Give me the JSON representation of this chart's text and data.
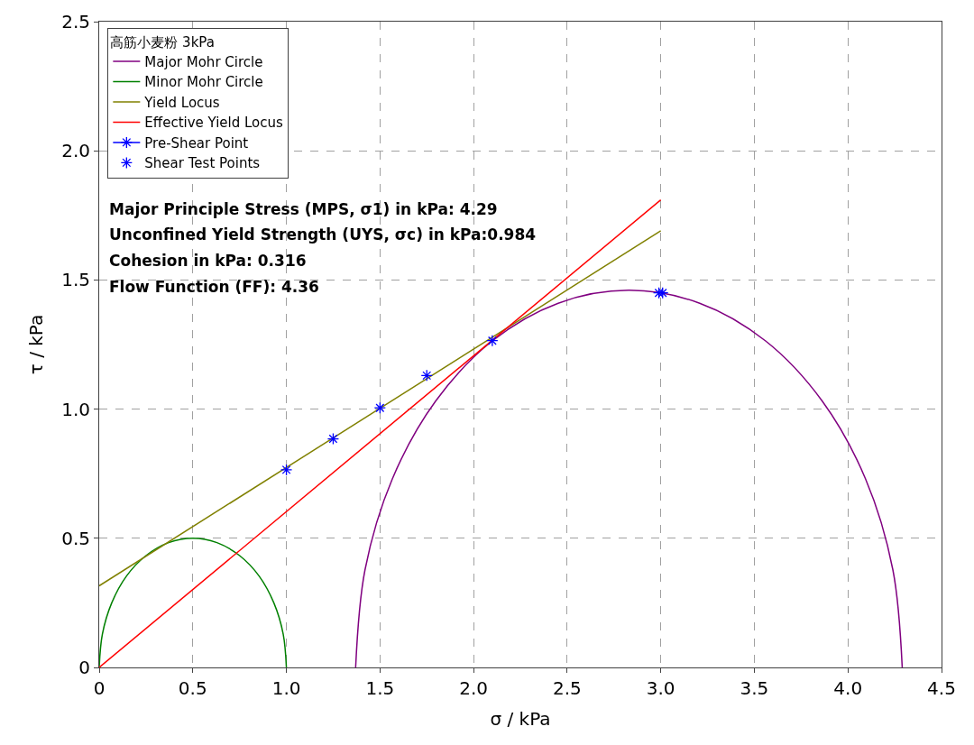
{
  "chart_data": {
    "type": "line",
    "xlabel": "σ / kPa",
    "ylabel": "τ / kPa",
    "legend_title": "高筋小麦粉 3kPa",
    "xlim": [
      0,
      4.5
    ],
    "xticks": [
      0,
      0.5,
      {
        "value": 1,
        "label": "1.0"
      },
      1.5,
      {
        "value": 2,
        "label": "2.0"
      },
      2.5,
      {
        "value": 3,
        "label": "3.0"
      },
      3.5,
      {
        "value": 4,
        "label": "4.0"
      },
      4.5
    ],
    "ylim": [
      0,
      2.5
    ],
    "yticks": [
      0,
      0.5,
      {
        "value": 1,
        "label": "1.0"
      },
      1.5,
      {
        "value": 2,
        "label": "2.0"
      },
      2.5
    ],
    "grid": true,
    "legend": "top left",
    "marker": "none",
    "annotations": [
      "Major Principle Stress (MPS, σ1) in kPa: 4.29",
      "Unconfined Yield Strength (UYS, σc) in kPa:0.984",
      "Cohesion in kPa: 0.316",
      "Flow Function (FF): 4.36"
    ],
    "series": [
      {
        "name": "Major Mohr Circle",
        "color": "#800080",
        "x": [
          1.37,
          1.42,
          1.566,
          1.798,
          2.1,
          2.452,
          2.83,
          3.208,
          3.56,
          3.862,
          4.094,
          4.24,
          4.29
        ],
        "values": [
          0,
          0.378,
          0.73,
          1.032,
          1.264,
          1.41,
          1.46,
          1.41,
          1.264,
          1.032,
          0.73,
          0.378,
          0
        ]
      },
      {
        "name": "Minor Mohr Circle",
        "color": "#008000",
        "x": [
          0,
          0.017,
          0.067,
          0.146,
          0.25,
          0.371,
          0.5,
          0.629,
          0.75,
          0.854,
          0.933,
          0.983,
          1.0
        ],
        "values": [
          0,
          0.129,
          0.25,
          0.354,
          0.433,
          0.483,
          0.5,
          0.483,
          0.433,
          0.354,
          0.25,
          0.129,
          0
        ]
      },
      {
        "name": "Yield Locus",
        "color": "#808000",
        "x": [
          0,
          3.0
        ],
        "values": [
          0.316,
          1.69
        ]
      },
      {
        "name": "Effective Yield Locus",
        "color": "#ff0000",
        "x": [
          0,
          3.0
        ],
        "values": [
          0,
          1.81
        ]
      },
      {
        "name": "Pre-Shear Point",
        "color": "#0000ff",
        "marker": "cross",
        "x": [
          2.99,
          3.01
        ],
        "values": [
          1.45,
          1.45
        ]
      },
      {
        "name": "Shear Test Points",
        "color": "#0000ff",
        "type": "scatter",
        "marker": "cross",
        "x": [
          1.0,
          1.25,
          1.5,
          1.75,
          2.1
        ],
        "values": [
          0.765,
          0.885,
          1.005,
          1.13,
          1.265
        ]
      }
    ]
  }
}
